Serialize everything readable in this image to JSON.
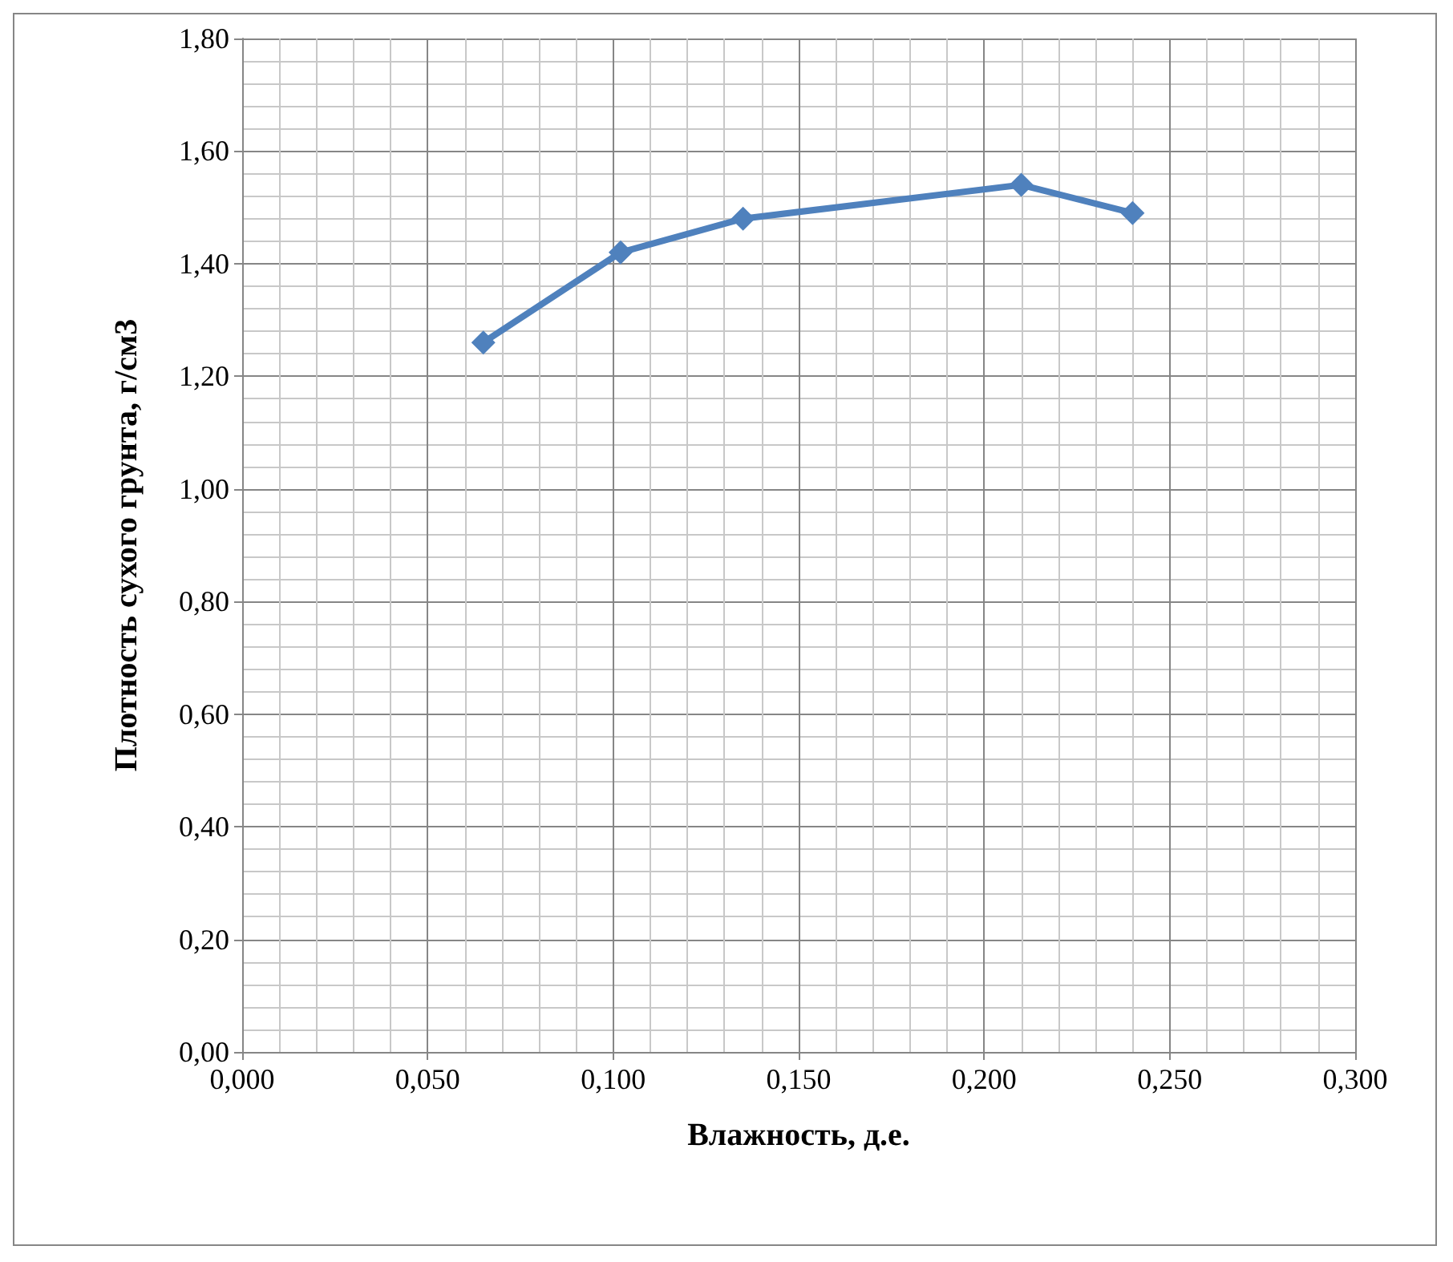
{
  "chart_data": {
    "type": "line",
    "xlabel": "Влажность, д.е.",
    "ylabel": "Плотность сухого грунта, г/см3",
    "x": [
      0.065,
      0.102,
      0.135,
      0.21,
      0.24
    ],
    "series": [
      {
        "color": "#4f81bd",
        "values": [
          1.26,
          1.42,
          1.48,
          1.54,
          1.49
        ]
      }
    ],
    "xlim": [
      0,
      0.3
    ],
    "xticks": [
      {
        "value": 0,
        "label": "0,000"
      },
      {
        "value": 0.05,
        "label": "0,050"
      },
      {
        "value": 0.1,
        "label": "0,100"
      },
      {
        "value": 0.15,
        "label": "0,150"
      },
      {
        "value": 0.2,
        "label": "0,200"
      },
      {
        "value": 0.25,
        "label": "0,250"
      },
      {
        "value": 0.3,
        "label": "0,300"
      }
    ],
    "ylim": [
      0,
      1.8
    ],
    "yticks": [
      {
        "value": 0,
        "label": "0,00"
      },
      {
        "value": 0.2,
        "label": "0,20"
      },
      {
        "value": 0.4,
        "label": "0,40"
      },
      {
        "value": 0.6,
        "label": "0,60"
      },
      {
        "value": 0.8,
        "label": "0,80"
      },
      {
        "value": 1,
        "label": "1,00"
      },
      {
        "value": 1.2,
        "label": "1,20"
      },
      {
        "value": 1.4,
        "label": "1,40"
      },
      {
        "value": 1.6,
        "label": "1,60"
      },
      {
        "value": 1.8,
        "label": "1,80"
      }
    ],
    "grid": true,
    "marker": "diamond",
    "line_style": "solid"
  }
}
